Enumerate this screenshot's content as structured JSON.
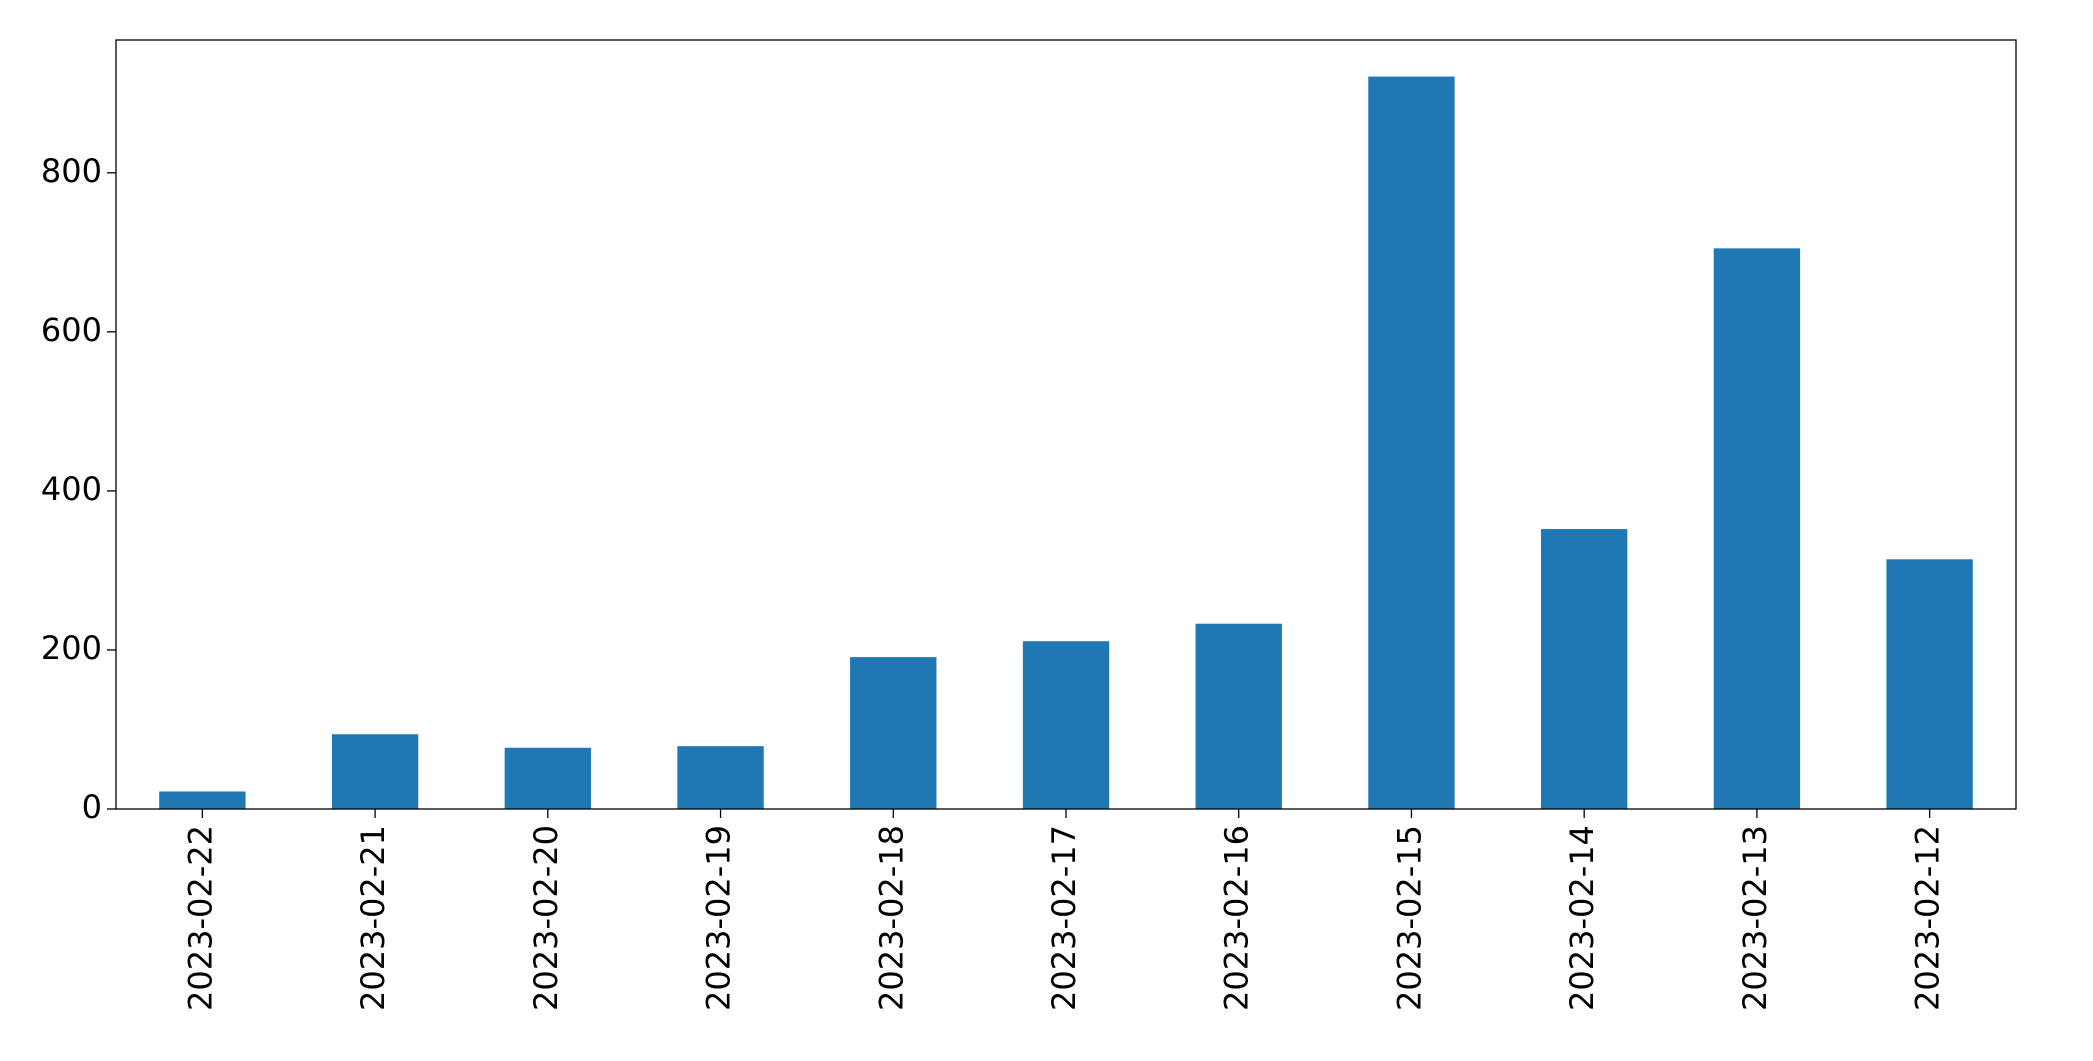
{
  "chart_data": {
    "type": "bar",
    "categories": [
      "2023-02-22",
      "2023-02-21",
      "2023-02-20",
      "2023-02-19",
      "2023-02-18",
      "2023-02-17",
      "2023-02-16",
      "2023-02-15",
      "2023-02-14",
      "2023-02-13",
      "2023-02-12"
    ],
    "values": [
      22,
      94,
      77,
      79,
      191,
      211,
      233,
      921,
      352,
      705,
      314
    ],
    "color": "#1f77b4",
    "ylim": [
      0,
      967
    ],
    "yticks": [
      0,
      200,
      400,
      600,
      800
    ],
    "grid": false
  }
}
